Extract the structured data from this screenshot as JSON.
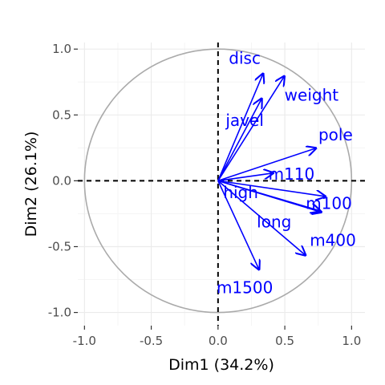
{
  "chart_data": {
    "type": "scatter",
    "title": "",
    "xlabel": "Dim1 (34.2%)",
    "ylabel": "Dim2 (26.1%)",
    "xlim": [
      -1.05,
      1.1
    ],
    "ylim": [
      -1.1,
      1.05
    ],
    "x_ticks": [
      -1.0,
      -0.5,
      0.0,
      0.5,
      1.0
    ],
    "y_ticks": [
      -1.0,
      -0.5,
      0.0,
      0.5,
      1.0
    ],
    "x_tick_labels": [
      "-1.0",
      "-0.5",
      "0.0",
      "0.5",
      "1.0"
    ],
    "y_tick_labels": [
      "-1.0",
      "-0.5",
      "0.0",
      "0.5",
      "1.0"
    ],
    "grid": true,
    "unit_circle": true,
    "reference_lines": "dashed at x=0 and y=0",
    "legend": "none",
    "vectors": [
      {
        "label": "disc",
        "x": 0.34,
        "y": 0.82,
        "label_x": 0.2,
        "label_y": 0.93
      },
      {
        "label": "weight",
        "x": 0.5,
        "y": 0.8,
        "label_x": 0.7,
        "label_y": 0.65
      },
      {
        "label": "javel",
        "x": 0.33,
        "y": 0.63,
        "label_x": 0.2,
        "label_y": 0.46
      },
      {
        "label": "pole",
        "x": 0.74,
        "y": 0.25,
        "label_x": 0.88,
        "label_y": 0.35
      },
      {
        "label": "m110",
        "x": 0.42,
        "y": 0.06,
        "label_x": 0.55,
        "label_y": 0.05
      },
      {
        "label": "m100",
        "x": 0.81,
        "y": -0.12,
        "label_x": 0.83,
        "label_y": -0.17
      },
      {
        "label": "high",
        "x": 0.78,
        "y": -0.24,
        "label_x": 0.17,
        "label_y": -0.09
      },
      {
        "label": "long",
        "x": 0.77,
        "y": -0.23,
        "label_x": 0.42,
        "label_y": -0.31
      },
      {
        "label": "m400",
        "x": 0.66,
        "y": -0.57,
        "label_x": 0.86,
        "label_y": -0.45
      },
      {
        "label": "m1500",
        "x": 0.31,
        "y": -0.68,
        "label_x": 0.2,
        "label_y": -0.81
      }
    ]
  },
  "colors": {
    "arrow": "#0000ff",
    "label": "#0000ff",
    "circle": "#aaaaaa",
    "grid_major": "#ebebeb",
    "grid_minor": "#f5f5f5",
    "reference": "#000000"
  }
}
